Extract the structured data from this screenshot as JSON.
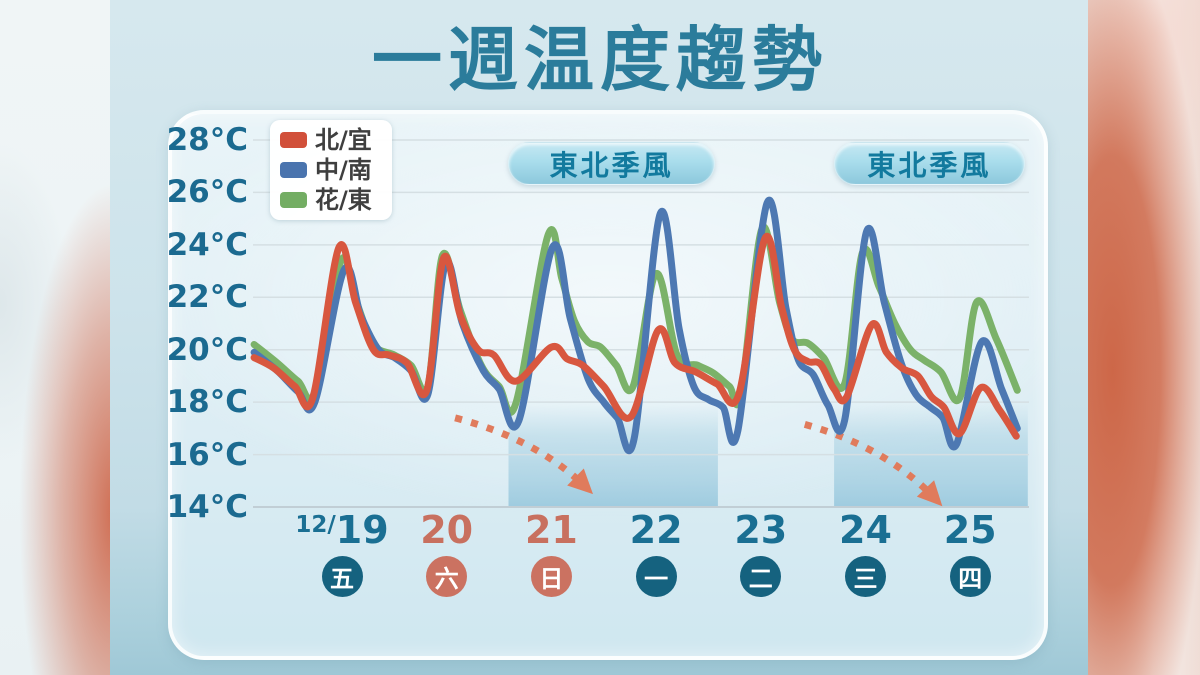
{
  "title": "一週温度趨勢",
  "legend": {
    "items": [
      {
        "key": "north-yilan",
        "label": "北/宜",
        "color": "#d1503a"
      },
      {
        "key": "central-south",
        "label": "中/南",
        "color": "#4a74ae"
      },
      {
        "key": "hualien-taitung",
        "label": "花/東",
        "color": "#73ad63"
      }
    ]
  },
  "y_axis": {
    "ticks": [
      {
        "label": "28°C",
        "value": 28
      },
      {
        "label": "26°C",
        "value": 26
      },
      {
        "label": "24°C",
        "value": 24
      },
      {
        "label": "22°C",
        "value": 22
      },
      {
        "label": "20°C",
        "value": 20
      },
      {
        "label": "18°C",
        "value": 18
      },
      {
        "label": "16°C",
        "value": 16
      },
      {
        "label": "14°C",
        "value": 14
      }
    ]
  },
  "x_axis": {
    "month_prefix": "12/",
    "days": [
      {
        "num": "19",
        "weekday": "五",
        "accent": "teal"
      },
      {
        "num": "20",
        "weekday": "六",
        "accent": "salmon"
      },
      {
        "num": "21",
        "weekday": "日",
        "accent": "salmon"
      },
      {
        "num": "22",
        "weekday": "一",
        "accent": "teal"
      },
      {
        "num": "23",
        "weekday": "二",
        "accent": "teal"
      },
      {
        "num": "24",
        "weekday": "三",
        "accent": "teal"
      },
      {
        "num": "25",
        "weekday": "四",
        "accent": "teal"
      }
    ]
  },
  "colors": {
    "title_text": "#2b7c9b",
    "axis_text": "#1b6a90",
    "teal_text": "#1a6f93",
    "salmon_text": "#c8705f",
    "teal_circle": "#15627f",
    "salmon_circle": "#cb7261",
    "grid": "#d5dfe3",
    "baseline": "#c1ced5",
    "arrow": "#e07b5c",
    "band": "#8fc3da",
    "badge_text": "#127a9e",
    "legend_text": "#3f3f3f"
  },
  "chart_data": {
    "type": "line",
    "title": "一週温度趨勢",
    "x_unit": "day_of_december",
    "x_tick_days": [
      19,
      20,
      21,
      22,
      23,
      24,
      25
    ],
    "ylim": [
      14,
      28
    ],
    "y_tick_step": 2,
    "grid": "horizontal-only",
    "legend_position": "top-left",
    "series": [
      {
        "key": "north-yilan",
        "name": "北/宜",
        "color": "#d8573f",
        "points": [
          [
            18.16,
            19.7
          ],
          [
            18.35,
            19.3
          ],
          [
            18.55,
            18.6
          ],
          [
            18.72,
            18.15
          ],
          [
            18.97,
            23.9
          ],
          [
            19.13,
            21.8
          ],
          [
            19.3,
            20.0
          ],
          [
            19.45,
            19.8
          ],
          [
            19.62,
            19.5
          ],
          [
            19.81,
            18.45
          ],
          [
            19.97,
            23.5
          ],
          [
            20.13,
            21.3
          ],
          [
            20.3,
            20.0
          ],
          [
            20.45,
            19.8
          ],
          [
            20.66,
            18.8
          ],
          [
            21.0,
            20.1
          ],
          [
            21.15,
            19.65
          ],
          [
            21.3,
            19.4
          ],
          [
            21.5,
            18.6
          ],
          [
            21.76,
            17.45
          ],
          [
            22.02,
            20.75
          ],
          [
            22.18,
            19.5
          ],
          [
            22.38,
            19.15
          ],
          [
            22.58,
            18.7
          ],
          [
            22.79,
            18.3
          ],
          [
            23.04,
            24.25
          ],
          [
            23.2,
            21.6
          ],
          [
            23.32,
            20.0
          ],
          [
            23.45,
            19.55
          ],
          [
            23.57,
            19.45
          ],
          [
            23.7,
            18.5
          ],
          [
            23.82,
            18.2
          ],
          [
            24.06,
            20.95
          ],
          [
            24.2,
            19.9
          ],
          [
            24.35,
            19.3
          ],
          [
            24.5,
            19.0
          ],
          [
            24.63,
            18.2
          ],
          [
            24.75,
            17.8
          ],
          [
            24.9,
            16.8
          ],
          [
            25.1,
            18.55
          ],
          [
            25.28,
            17.7
          ],
          [
            25.44,
            16.7
          ]
        ]
      },
      {
        "key": "central-south",
        "name": "中/南",
        "color": "#4d78b2",
        "points": [
          [
            18.16,
            19.9
          ],
          [
            18.38,
            19.2
          ],
          [
            18.58,
            18.4
          ],
          [
            18.74,
            18.0
          ],
          [
            19.02,
            23.05
          ],
          [
            19.18,
            21.3
          ],
          [
            19.35,
            20.0
          ],
          [
            19.5,
            19.7
          ],
          [
            19.66,
            19.2
          ],
          [
            19.82,
            18.3
          ],
          [
            19.99,
            23.3
          ],
          [
            20.15,
            21.0
          ],
          [
            20.35,
            19.2
          ],
          [
            20.5,
            18.5
          ],
          [
            20.69,
            17.3
          ],
          [
            21.01,
            23.9
          ],
          [
            21.18,
            21.2
          ],
          [
            21.35,
            18.9
          ],
          [
            21.5,
            18.0
          ],
          [
            21.63,
            17.4
          ],
          [
            21.79,
            16.6
          ],
          [
            22.04,
            25.2
          ],
          [
            22.22,
            20.8
          ],
          [
            22.36,
            18.6
          ],
          [
            22.5,
            18.1
          ],
          [
            22.64,
            17.8
          ],
          [
            22.78,
            16.9
          ],
          [
            23.06,
            25.6
          ],
          [
            23.24,
            21.6
          ],
          [
            23.36,
            19.6
          ],
          [
            23.5,
            19.05
          ],
          [
            23.64,
            17.9
          ],
          [
            23.8,
            17.3
          ],
          [
            24.01,
            24.5
          ],
          [
            24.18,
            21.8
          ],
          [
            24.34,
            19.5
          ],
          [
            24.48,
            18.3
          ],
          [
            24.62,
            17.8
          ],
          [
            24.74,
            17.4
          ],
          [
            24.87,
            16.4
          ],
          [
            25.11,
            20.3
          ],
          [
            25.3,
            18.5
          ],
          [
            25.45,
            17.0
          ]
        ]
      },
      {
        "key": "hualien-taitung",
        "name": "花/東",
        "color": "#7bb269",
        "points": [
          [
            18.16,
            20.2
          ],
          [
            18.38,
            19.5
          ],
          [
            18.58,
            18.8
          ],
          [
            18.74,
            18.4
          ],
          [
            18.99,
            23.4
          ],
          [
            19.14,
            21.8
          ],
          [
            19.3,
            20.2
          ],
          [
            19.5,
            19.8
          ],
          [
            19.66,
            19.4
          ],
          [
            19.82,
            18.6
          ],
          [
            19.96,
            23.6
          ],
          [
            20.13,
            21.5
          ],
          [
            20.33,
            19.4
          ],
          [
            20.5,
            18.6
          ],
          [
            20.66,
            17.95
          ],
          [
            20.97,
            24.4
          ],
          [
            21.1,
            22.7
          ],
          [
            21.22,
            21.1
          ],
          [
            21.35,
            20.3
          ],
          [
            21.47,
            20.1
          ],
          [
            21.62,
            19.4
          ],
          [
            21.78,
            18.6
          ],
          [
            22.0,
            22.9
          ],
          [
            22.2,
            19.8
          ],
          [
            22.4,
            19.4
          ],
          [
            22.55,
            19.1
          ],
          [
            22.7,
            18.6
          ],
          [
            22.81,
            18.3
          ],
          [
            23.01,
            24.6
          ],
          [
            23.18,
            21.8
          ],
          [
            23.3,
            20.4
          ],
          [
            23.45,
            20.25
          ],
          [
            23.6,
            19.7
          ],
          [
            23.8,
            18.7
          ],
          [
            23.97,
            23.7
          ],
          [
            24.13,
            22.4
          ],
          [
            24.28,
            21.0
          ],
          [
            24.43,
            20.0
          ],
          [
            24.56,
            19.6
          ],
          [
            24.72,
            19.15
          ],
          [
            24.9,
            18.15
          ],
          [
            25.06,
            21.8
          ],
          [
            25.25,
            20.4
          ],
          [
            25.45,
            18.45
          ]
        ]
      }
    ],
    "monsoon_bands": [
      {
        "label": "東北季風",
        "from_day": 20.59,
        "to_day": 22.59
      },
      {
        "label": "東北季風",
        "from_day": 23.7,
        "to_day": 25.55
      }
    ],
    "trend_arrows": [
      {
        "from": [
          20.08,
          17.4
        ],
        "to": [
          21.33,
          14.75
        ]
      },
      {
        "from": [
          23.42,
          17.15
        ],
        "to": [
          24.67,
          14.3
        ]
      }
    ]
  }
}
